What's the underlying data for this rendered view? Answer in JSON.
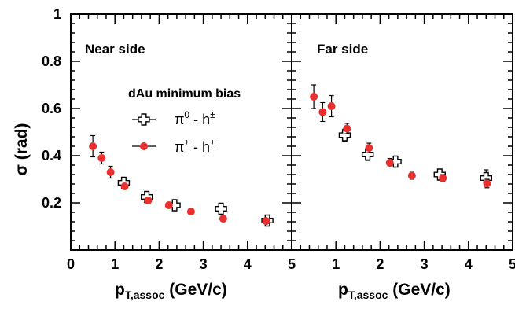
{
  "chart_data": {
    "type": "scatter",
    "ylabel_main": "σ (rad)",
    "xlabel_base": "p",
    "xlabel_sub": "T,assoc",
    "xlabel_tail": " (GeV/c)",
    "ylim": [
      0,
      1
    ],
    "y_ticks": [
      "0.2",
      "0.4",
      "0.6",
      "0.8",
      "1"
    ],
    "xlim": [
      0,
      5
    ],
    "x_ticks_left": [
      "0",
      "1",
      "2",
      "3",
      "4",
      "5"
    ],
    "x_ticks_right": [
      "1",
      "2",
      "3",
      "4",
      "5"
    ],
    "legend": {
      "title": "dAu minimum bias",
      "pi0": {
        "base": "π",
        "sup": "0",
        "mid": " - h",
        "sup2": "±"
      },
      "pipm": {
        "base": "π",
        "sup": "±",
        "mid": " - h",
        "sup2": "±"
      }
    },
    "panels": [
      {
        "title": "Near side",
        "series": [
          {
            "key": "pi0",
            "marker": "open-cross",
            "points": [
              {
                "x": 1.2,
                "y": 0.285,
                "err": 0.015
              },
              {
                "x": 1.72,
                "y": 0.225,
                "err": 0.015
              },
              {
                "x": 2.35,
                "y": 0.19,
                "err": 0.012
              },
              {
                "x": 3.4,
                "y": 0.175,
                "err": 0.015
              },
              {
                "x": 4.45,
                "y": 0.125,
                "err": 0.012
              }
            ]
          },
          {
            "key": "pipm",
            "marker": "filled-circle",
            "color": "#e8302f",
            "points": [
              {
                "x": 0.5,
                "y": 0.44,
                "err": 0.045
              },
              {
                "x": 0.7,
                "y": 0.39,
                "err": 0.025
              },
              {
                "x": 0.9,
                "y": 0.33,
                "err": 0.025
              },
              {
                "x": 1.22,
                "y": 0.27,
                "err": 0.012
              },
              {
                "x": 1.75,
                "y": 0.21,
                "err": 0.01
              },
              {
                "x": 2.22,
                "y": 0.19,
                "err": 0.008
              },
              {
                "x": 2.72,
                "y": 0.163,
                "err": 0.006
              },
              {
                "x": 3.45,
                "y": 0.133,
                "err": 0.008
              },
              {
                "x": 4.42,
                "y": 0.123,
                "err": 0.008
              }
            ]
          }
        ]
      },
      {
        "title": "Far side",
        "series": [
          {
            "key": "pi0",
            "marker": "open-cross",
            "points": [
              {
                "x": 1.2,
                "y": 0.487,
                "err": 0.025
              },
              {
                "x": 1.72,
                "y": 0.405,
                "err": 0.025
              },
              {
                "x": 2.35,
                "y": 0.375,
                "err": 0.018
              },
              {
                "x": 3.35,
                "y": 0.32,
                "err": 0.022
              },
              {
                "x": 4.4,
                "y": 0.305,
                "err": 0.035
              }
            ]
          },
          {
            "key": "pipm",
            "marker": "filled-circle",
            "color": "#e8302f",
            "points": [
              {
                "x": 0.5,
                "y": 0.65,
                "err": 0.05
              },
              {
                "x": 0.7,
                "y": 0.585,
                "err": 0.04
              },
              {
                "x": 0.9,
                "y": 0.61,
                "err": 0.045
              },
              {
                "x": 1.25,
                "y": 0.515,
                "err": 0.022
              },
              {
                "x": 1.75,
                "y": 0.433,
                "err": 0.02
              },
              {
                "x": 2.22,
                "y": 0.37,
                "err": 0.018
              },
              {
                "x": 2.72,
                "y": 0.315,
                "err": 0.015
              },
              {
                "x": 3.42,
                "y": 0.305,
                "err": 0.015
              },
              {
                "x": 4.42,
                "y": 0.282,
                "err": 0.018
              }
            ]
          }
        ]
      }
    ]
  }
}
